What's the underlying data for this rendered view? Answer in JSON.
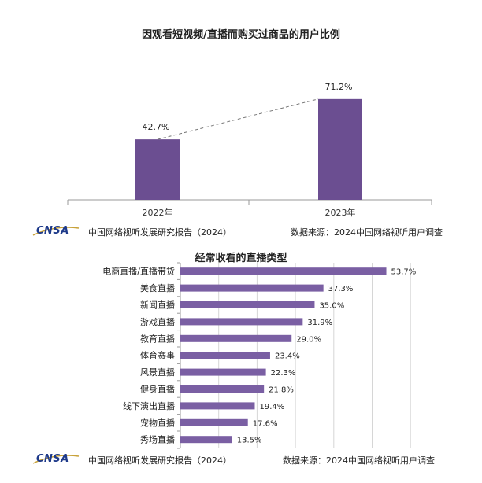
{
  "chart_data": [
    {
      "type": "bar",
      "title": "因观看短视频/直播而购买过商品的用户比例",
      "categories": [
        "2022年",
        "2023年"
      ],
      "values": [
        42.7,
        71.2
      ],
      "labels": [
        "42.7%",
        "71.2%"
      ],
      "ylim": [
        0,
        100
      ],
      "trend_line": true,
      "color": "#6b4e91"
    },
    {
      "type": "bar",
      "orientation": "horizontal",
      "title": "经常收看的直播类型",
      "categories": [
        "电商直播/直播带货",
        "美食直播",
        "新闻直播",
        "游戏直播",
        "教育直播",
        "体育赛事",
        "风景直播",
        "健身直播",
        "线下演出直播",
        "宠物直播",
        "秀场直播"
      ],
      "values": [
        53.7,
        37.3,
        35.0,
        31.9,
        29.0,
        23.4,
        22.3,
        21.8,
        19.4,
        17.6,
        13.5
      ],
      "labels": [
        "53.7%",
        "37.3%",
        "35.0%",
        "31.9%",
        "29.0%",
        "23.4%",
        "22.3%",
        "21.8%",
        "19.4%",
        "17.6%",
        "13.5%"
      ],
      "xlim": [
        0,
        60
      ],
      "grid": true,
      "color": "#7a5fa3"
    }
  ],
  "footer_top": {
    "logo": "CNSA",
    "report": "中国网络视听发展研究报告（2024）",
    "source": "数据来源：2024中国网络视听用户调查"
  },
  "footer_bottom": {
    "logo": "CNSA",
    "report": "中国网络视听发展研究报告（2024）",
    "source": "数据来源：2024中国网络视听用户调查"
  }
}
